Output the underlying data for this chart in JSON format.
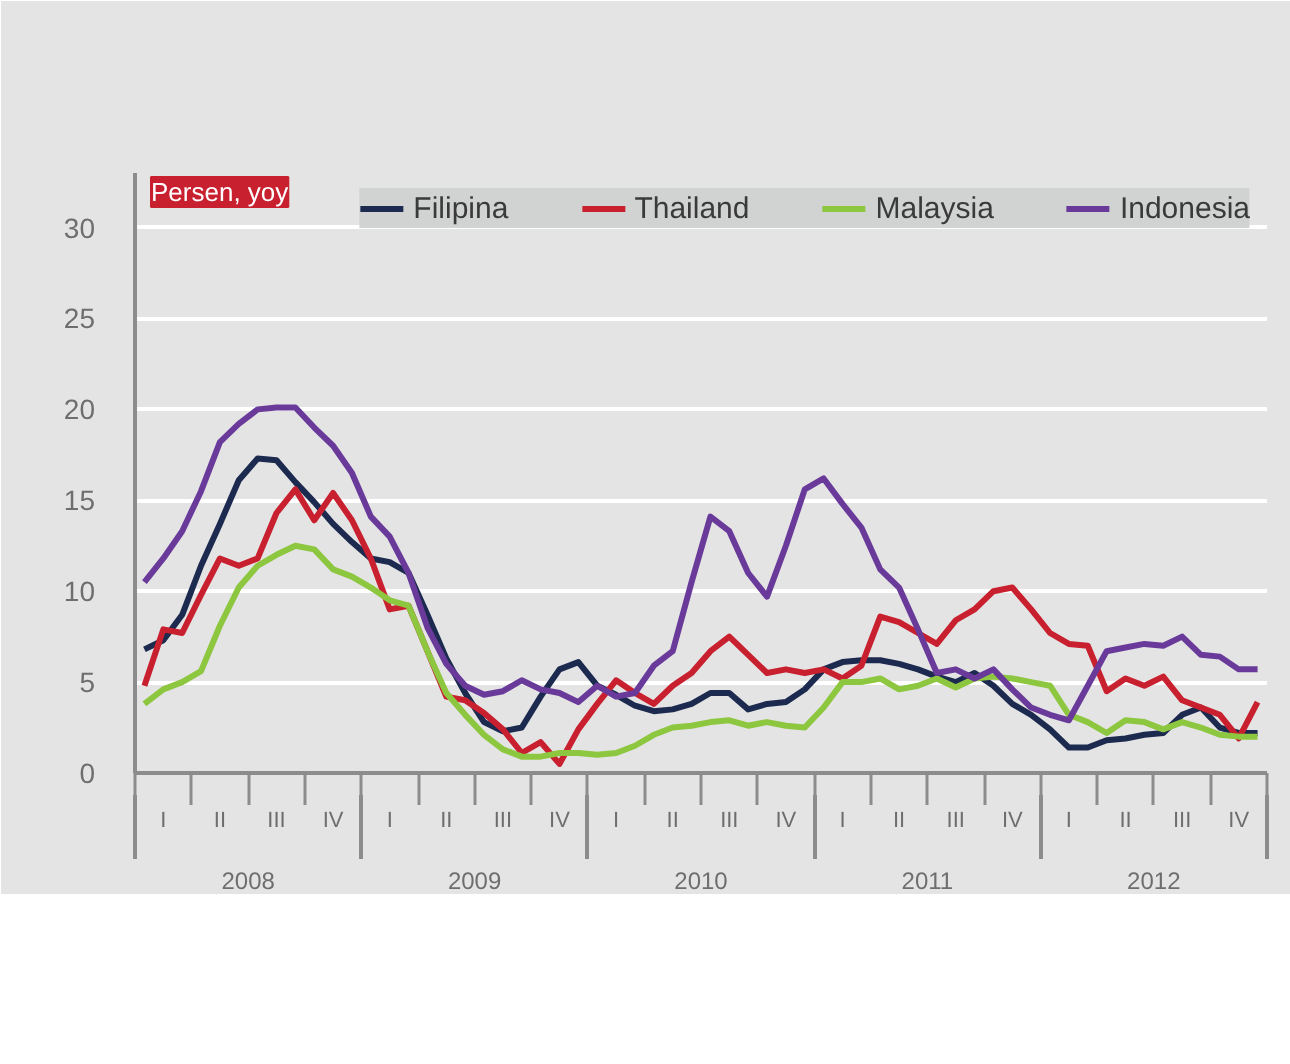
{
  "chart_data": {
    "type": "line",
    "ylabel": "Persen, yoy",
    "categories": [
      null,
      "I",
      null,
      null,
      "II",
      null,
      null,
      "III",
      null,
      null,
      "IV",
      null,
      null,
      "I",
      null,
      null,
      "II",
      null,
      null,
      "III",
      null,
      null,
      "IV",
      null,
      null,
      "I",
      null,
      null,
      "II",
      null,
      null,
      "III",
      null,
      null,
      "IV",
      null,
      null,
      "I",
      null,
      null,
      "II",
      null,
      null,
      "III",
      null,
      null,
      "IV",
      null,
      null,
      "I",
      null,
      null,
      "II",
      null,
      null,
      "III",
      null,
      null,
      "IV",
      null
    ],
    "series": [
      {
        "name": "Filipina",
        "color": "#1c2a4f",
        "values": [
          6.8,
          7.3,
          8.7,
          11.4,
          13.7,
          16.1,
          17.3,
          17.2,
          16,
          14.9,
          13.7,
          12.7,
          11.8,
          11.6,
          11,
          8.7,
          6.3,
          4.4,
          2.8,
          2.3,
          2.5,
          4.2,
          5.7,
          6.1,
          4.8,
          4.3,
          3.7,
          3.4,
          3.5,
          3.8,
          4.4,
          4.4,
          3.5,
          3.8,
          3.9,
          4.6,
          5.7,
          6.1,
          6.2,
          6.2,
          6,
          5.7,
          5.3,
          5,
          5.5,
          4.8,
          3.8,
          3.2,
          2.4,
          1.4,
          1.4,
          1.8,
          1.9,
          2.1,
          2.2,
          3.2,
          3.6,
          2.5,
          2.2,
          2.2
        ]
      },
      {
        "name": "Thailand",
        "color": "#c8202f",
        "values": [
          4.8,
          7.9,
          7.7,
          9.8,
          11.8,
          11.4,
          11.8,
          14.3,
          15.6,
          13.9,
          15.4,
          13.9,
          11.8,
          9,
          9.2,
          6.7,
          4.2,
          4,
          3.3,
          2.4,
          1.1,
          1.7,
          0.5,
          2.4,
          3.8,
          5.1,
          4.4,
          3.8,
          4.8,
          5.5,
          6.7,
          7.5,
          6.5,
          5.5,
          5.7,
          5.5,
          5.7,
          5.2,
          5.9,
          8.6,
          8.3,
          7.7,
          7.1,
          8.4,
          9,
          10,
          10.2,
          9,
          7.7,
          7.1,
          7,
          4.5,
          5.2,
          4.8,
          5.3,
          4,
          3.6,
          3.2,
          1.9,
          3.9
        ]
      },
      {
        "name": "Malaysia",
        "color": "#8dc63f",
        "values": [
          3.8,
          4.6,
          5,
          5.6,
          8.1,
          10.2,
          11.4,
          12,
          12.5,
          12.3,
          11.2,
          10.8,
          10.2,
          9.5,
          9.2,
          6.7,
          4.4,
          3.2,
          2.1,
          1.3,
          0.9,
          0.9,
          1.1,
          1.1,
          1,
          1.1,
          1.5,
          2.1,
          2.5,
          2.6,
          2.8,
          2.9,
          2.6,
          2.8,
          2.6,
          2.5,
          3.6,
          5,
          5,
          5.2,
          4.6,
          4.8,
          5.2,
          4.7,
          5.2,
          5.3,
          5.2,
          5,
          4.8,
          3.2,
          2.8,
          2.2,
          2.9,
          2.8,
          2.4,
          2.8,
          2.5,
          2.1,
          2,
          2
        ]
      },
      {
        "name": "Indonesia",
        "color": "#6a3a9a",
        "values": [
          10.5,
          11.8,
          13.3,
          15.5,
          18.2,
          19.2,
          20,
          20.1,
          20.1,
          19,
          18,
          16.5,
          14.1,
          13,
          11,
          8,
          6,
          4.8,
          4.3,
          4.5,
          5.1,
          4.6,
          4.4,
          3.9,
          4.8,
          4.2,
          4.4,
          5.9,
          6.7,
          10.5,
          14.1,
          13.3,
          11,
          9.7,
          12.5,
          15.6,
          16.2,
          14.8,
          13.5,
          11.2,
          10.2,
          7.9,
          5.5,
          5.7,
          5.2,
          5.7,
          4.6,
          3.6,
          3.2,
          2.9,
          4.8,
          6.7,
          6.9,
          7.1,
          7,
          7.5,
          6.5,
          6.4,
          5.7,
          5.7
        ]
      }
    ],
    "annotations": [
      "2008",
      "2009",
      "2010",
      "2011",
      "2012"
    ],
    "ylim": [
      0,
      33
    ],
    "yticks": [
      0,
      5,
      10,
      15,
      20,
      25,
      30
    ],
    "grid": "y",
    "legend": "top right",
    "line_style": "solid"
  }
}
